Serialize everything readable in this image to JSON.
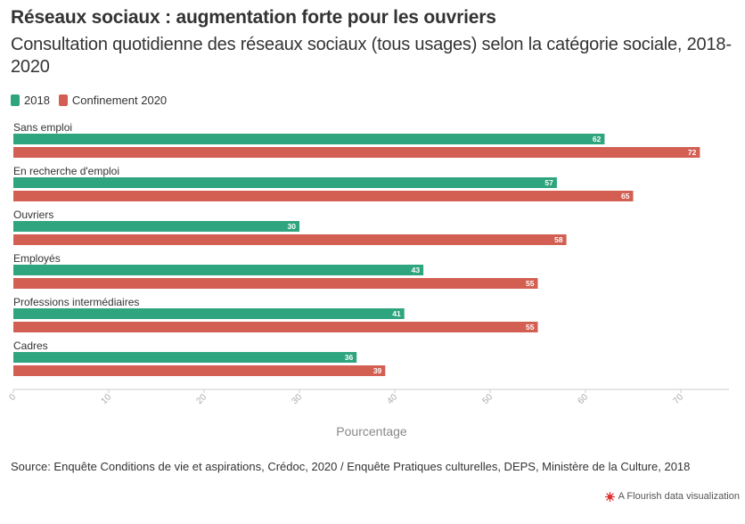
{
  "header": {
    "title": "Réseaux sociaux : augmentation forte pour les ouvriers",
    "subtitle": "Consultation quotidienne des réseaux sociaux (tous usages) selon la catégorie sociale, 2018-2020"
  },
  "legend": {
    "items": [
      {
        "label": "2018",
        "color": "#2ea57e"
      },
      {
        "label": "Confinement 2020",
        "color": "#d35f52"
      }
    ]
  },
  "chart_data": {
    "type": "bar",
    "orientation": "horizontal",
    "categories": [
      "Sans emploi",
      "En recherche d'emploi",
      "Ouvriers",
      "Employés",
      "Professions intermédiaires",
      "Cadres"
    ],
    "series": [
      {
        "name": "2018",
        "color": "#2ea57e",
        "values": [
          62,
          57,
          30,
          43,
          41,
          36
        ]
      },
      {
        "name": "Confinement 2020",
        "color": "#d35f52",
        "values": [
          72,
          65,
          58,
          55,
          55,
          39
        ]
      }
    ],
    "xlabel": "Pourcentage",
    "xlim": [
      0,
      75
    ],
    "xticks": [
      0,
      10,
      20,
      30,
      40,
      50,
      60,
      70
    ],
    "grid": false,
    "legend_position": "top-left"
  },
  "footer": {
    "source": "Source: Enquête Conditions de vie et aspirations, Crédoc, 2020 / Enquête Pratiques culturelles, DEPS, Ministère de la Culture, 2018",
    "credit": "A Flourish data visualization",
    "credit_icon": "flourish-logo-icon"
  }
}
